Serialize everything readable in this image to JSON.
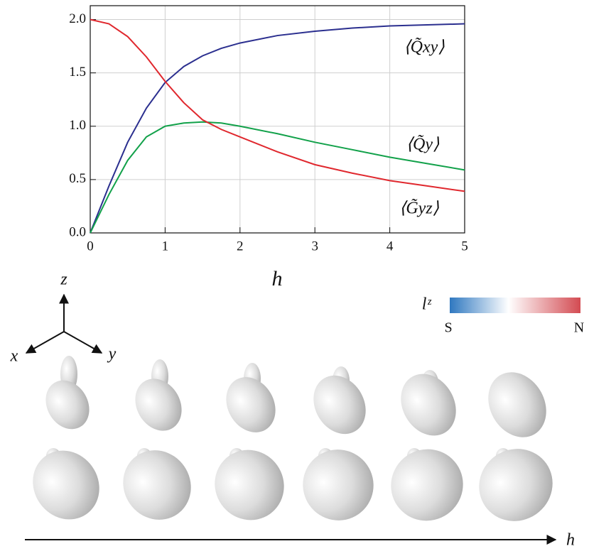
{
  "chart_data": {
    "type": "line",
    "xlabel": "h",
    "x": [
      0,
      0.25,
      0.5,
      0.75,
      1,
      1.25,
      1.5,
      1.75,
      2,
      2.5,
      3,
      3.5,
      4,
      4.5,
      5
    ],
    "series": [
      {
        "name": "⟨Q̃xy⟩",
        "color": "#2b2f8f",
        "values": [
          0,
          0.44,
          0.85,
          1.17,
          1.41,
          1.56,
          1.66,
          1.73,
          1.78,
          1.85,
          1.89,
          1.92,
          1.94,
          1.95,
          1.96
        ]
      },
      {
        "name": "⟨Q̃y⟩",
        "color": "#12a14a",
        "values": [
          0,
          0.36,
          0.68,
          0.9,
          1.0,
          1.03,
          1.04,
          1.03,
          1.0,
          0.93,
          0.85,
          0.78,
          0.71,
          0.65,
          0.59
        ]
      },
      {
        "name": "⟨G̃yz⟩",
        "color": "#e0282e",
        "values": [
          2.0,
          1.96,
          1.84,
          1.65,
          1.42,
          1.22,
          1.06,
          0.97,
          0.9,
          0.76,
          0.64,
          0.56,
          0.49,
          0.44,
          0.39
        ]
      }
    ],
    "xlim": [
      0,
      5
    ],
    "xticks": [
      0,
      1,
      2,
      3,
      4,
      5
    ],
    "ylim": [
      0,
      2.13
    ],
    "yticks": [
      {
        "value": 0,
        "label": "0.0"
      },
      0.5,
      {
        "value": 1,
        "label": "1.0"
      },
      1.5,
      {
        "value": 2,
        "label": "2.0"
      }
    ],
    "grid": true
  },
  "diagram": {
    "axes": [
      "z",
      "x",
      "y"
    ],
    "colorbar": {
      "label": "lᶻ",
      "min_label": "S",
      "max_label": "N"
    },
    "arrow_label": "h"
  }
}
